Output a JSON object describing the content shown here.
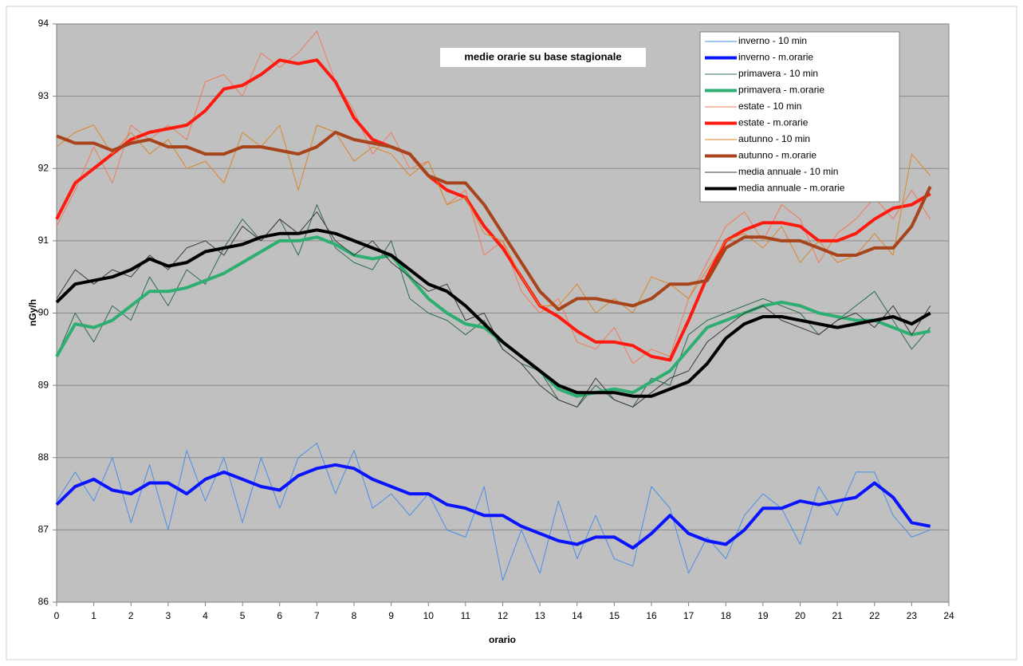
{
  "chart_data": {
    "type": "line",
    "title": "medie orarie su base stagionale",
    "x_label": "orario",
    "y_label": "nGy/h",
    "xlim": [
      0,
      24
    ],
    "ylim": [
      86,
      94
    ],
    "xticks": [
      0,
      1,
      2,
      3,
      4,
      5,
      6,
      7,
      8,
      9,
      10,
      11,
      12,
      13,
      14,
      15,
      16,
      17,
      18,
      19,
      20,
      21,
      22,
      23,
      24
    ],
    "yticks": [
      86,
      87,
      88,
      89,
      90,
      91,
      92,
      93,
      94
    ],
    "grid": true,
    "legend": "upper right",
    "x": [
      0,
      0.5,
      1,
      1.5,
      2,
      2.5,
      3,
      3.5,
      4,
      4.5,
      5,
      5.5,
      6,
      6.5,
      7,
      7.5,
      8,
      8.5,
      9,
      9.5,
      10,
      10.5,
      11,
      11.5,
      12,
      12.5,
      13,
      13.5,
      14,
      14.5,
      15,
      15.5,
      16,
      16.5,
      17,
      17.5,
      18,
      18.5,
      19,
      19.5,
      20,
      20.5,
      21,
      21.5,
      22,
      22.5,
      23,
      23.5
    ],
    "series": [
      {
        "name": "inverno - 10 min",
        "color": "#4a8ee8",
        "width": 1,
        "values": [
          87.4,
          87.8,
          87.4,
          88.0,
          87.1,
          87.9,
          87.0,
          88.1,
          87.4,
          88.0,
          87.1,
          88.0,
          87.3,
          88.0,
          88.2,
          87.5,
          88.1,
          87.3,
          87.5,
          87.2,
          87.5,
          87.0,
          86.9,
          87.6,
          86.3,
          87.0,
          86.4,
          87.4,
          86.6,
          87.2,
          86.6,
          86.5,
          87.6,
          87.3,
          86.4,
          86.9,
          86.6,
          87.2,
          87.5,
          87.3,
          86.8,
          87.6,
          87.2,
          87.8,
          87.8,
          87.2,
          86.9,
          87.0
        ]
      },
      {
        "name": "inverno - m.orarie",
        "color": "#0a14ff",
        "width": 4,
        "values": [
          87.35,
          87.6,
          87.7,
          87.55,
          87.5,
          87.65,
          87.65,
          87.5,
          87.7,
          87.8,
          87.7,
          87.6,
          87.55,
          87.75,
          87.85,
          87.9,
          87.85,
          87.7,
          87.6,
          87.5,
          87.5,
          87.35,
          87.3,
          87.2,
          87.2,
          87.05,
          86.95,
          86.85,
          86.8,
          86.9,
          86.9,
          86.75,
          86.95,
          87.2,
          86.95,
          86.85,
          86.8,
          87.0,
          87.3,
          87.3,
          87.4,
          87.35,
          87.4,
          87.45,
          87.65,
          87.45,
          87.1,
          87.05
        ]
      },
      {
        "name": "primavera - 10 min",
        "color": "#2e6b4e",
        "width": 1,
        "values": [
          89.4,
          90.0,
          89.6,
          90.1,
          89.9,
          90.5,
          90.1,
          90.6,
          90.4,
          90.9,
          91.3,
          91.0,
          91.3,
          90.8,
          91.5,
          90.9,
          90.7,
          90.6,
          91.0,
          90.2,
          90.0,
          89.9,
          89.7,
          89.9,
          89.5,
          89.3,
          89.2,
          88.8,
          88.7,
          89.0,
          88.8,
          88.7,
          89.1,
          89.0,
          89.7,
          89.9,
          90.0,
          90.1,
          90.2,
          90.1,
          90.0,
          89.7,
          89.9,
          90.1,
          90.3,
          89.9,
          89.5,
          89.8
        ]
      },
      {
        "name": "primavera - m.orarie",
        "color": "#2fae72",
        "width": 4,
        "values": [
          89.4,
          89.85,
          89.8,
          89.9,
          90.1,
          90.3,
          90.3,
          90.35,
          90.45,
          90.55,
          90.7,
          90.85,
          91.0,
          91.0,
          91.05,
          90.95,
          90.8,
          90.75,
          90.8,
          90.5,
          90.2,
          90.0,
          89.85,
          89.8,
          89.6,
          89.4,
          89.2,
          88.95,
          88.85,
          88.9,
          88.95,
          88.9,
          89.05,
          89.2,
          89.5,
          89.8,
          89.9,
          90.0,
          90.1,
          90.15,
          90.1,
          90.0,
          89.95,
          89.9,
          89.9,
          89.8,
          89.7,
          89.75
        ]
      },
      {
        "name": "estate - 10 min",
        "color": "#f07a58",
        "width": 1,
        "values": [
          91.2,
          91.7,
          92.3,
          91.8,
          92.6,
          92.4,
          92.6,
          92.4,
          93.2,
          93.3,
          93.0,
          93.6,
          93.4,
          93.6,
          93.9,
          93.2,
          92.8,
          92.2,
          92.5,
          92.0,
          92.1,
          91.5,
          91.7,
          90.8,
          91.0,
          90.3,
          90.0,
          90.2,
          89.6,
          89.5,
          89.8,
          89.3,
          89.5,
          89.4,
          90.2,
          90.7,
          91.2,
          91.4,
          91.0,
          91.5,
          91.3,
          90.7,
          91.1,
          91.3,
          91.6,
          91.3,
          91.7,
          91.3
        ]
      },
      {
        "name": "estate - m.orarie",
        "color": "#ff1a10",
        "width": 4,
        "values": [
          91.3,
          91.8,
          92.0,
          92.2,
          92.4,
          92.5,
          92.55,
          92.6,
          92.8,
          93.1,
          93.15,
          93.3,
          93.5,
          93.45,
          93.5,
          93.2,
          92.7,
          92.4,
          92.3,
          92.2,
          91.9,
          91.7,
          91.6,
          91.2,
          90.9,
          90.5,
          90.1,
          89.95,
          89.75,
          89.6,
          89.6,
          89.55,
          89.4,
          89.35,
          89.9,
          90.5,
          91.0,
          91.15,
          91.25,
          91.25,
          91.2,
          91.0,
          91.0,
          91.1,
          91.3,
          91.45,
          91.5,
          91.65
        ]
      },
      {
        "name": "autunno - 10 min",
        "color": "#d9862a",
        "width": 1,
        "values": [
          92.3,
          92.5,
          92.6,
          92.2,
          92.5,
          92.2,
          92.4,
          92.0,
          92.1,
          91.8,
          92.5,
          92.3,
          92.6,
          91.7,
          92.6,
          92.5,
          92.1,
          92.3,
          92.2,
          91.9,
          92.1,
          91.5,
          91.6,
          91.1,
          91.0,
          90.5,
          90.1,
          90.1,
          90.4,
          90.0,
          90.2,
          90.0,
          90.5,
          90.4,
          90.2,
          90.6,
          91.0,
          91.1,
          90.9,
          91.2,
          90.7,
          91.0,
          90.7,
          90.8,
          91.1,
          90.8,
          92.2,
          91.9
        ]
      },
      {
        "name": "autunno - m.orarie",
        "color": "#a8441c",
        "width": 4,
        "values": [
          92.45,
          92.35,
          92.35,
          92.25,
          92.35,
          92.4,
          92.3,
          92.3,
          92.2,
          92.2,
          92.3,
          92.3,
          92.25,
          92.2,
          92.3,
          92.5,
          92.4,
          92.35,
          92.3,
          92.2,
          91.9,
          91.8,
          91.8,
          91.5,
          91.1,
          90.7,
          90.3,
          90.05,
          90.2,
          90.2,
          90.15,
          90.1,
          90.2,
          90.4,
          90.4,
          90.45,
          90.9,
          91.05,
          91.05,
          91.0,
          91.0,
          90.9,
          90.8,
          90.8,
          90.9,
          90.9,
          91.2,
          91.75
        ]
      },
      {
        "name": "media annuale - 10 min",
        "color": "#3a3a3a",
        "width": 1,
        "values": [
          90.2,
          90.6,
          90.4,
          90.6,
          90.5,
          90.8,
          90.6,
          90.9,
          91.0,
          90.8,
          91.2,
          91.0,
          91.3,
          91.1,
          91.4,
          91.0,
          90.8,
          91.0,
          90.7,
          90.5,
          90.3,
          90.4,
          89.9,
          90.0,
          89.5,
          89.3,
          89.0,
          88.8,
          88.7,
          89.1,
          88.8,
          88.7,
          88.9,
          89.1,
          89.2,
          89.6,
          89.8,
          90.0,
          90.1,
          89.9,
          89.8,
          89.7,
          89.9,
          90.0,
          89.8,
          90.1,
          89.7,
          90.1
        ]
      },
      {
        "name": "media annuale - m.orarie",
        "color": "#000000",
        "width": 4,
        "values": [
          90.15,
          90.4,
          90.45,
          90.5,
          90.6,
          90.75,
          90.65,
          90.7,
          90.85,
          90.9,
          90.95,
          91.05,
          91.1,
          91.1,
          91.15,
          91.1,
          91.0,
          90.9,
          90.8,
          90.6,
          90.4,
          90.3,
          90.1,
          89.85,
          89.6,
          89.4,
          89.2,
          89.0,
          88.9,
          88.9,
          88.9,
          88.85,
          88.85,
          88.95,
          89.05,
          89.3,
          89.65,
          89.85,
          89.95,
          89.95,
          89.9,
          89.85,
          89.8,
          89.85,
          89.9,
          89.95,
          89.85,
          90.0
        ]
      }
    ]
  }
}
